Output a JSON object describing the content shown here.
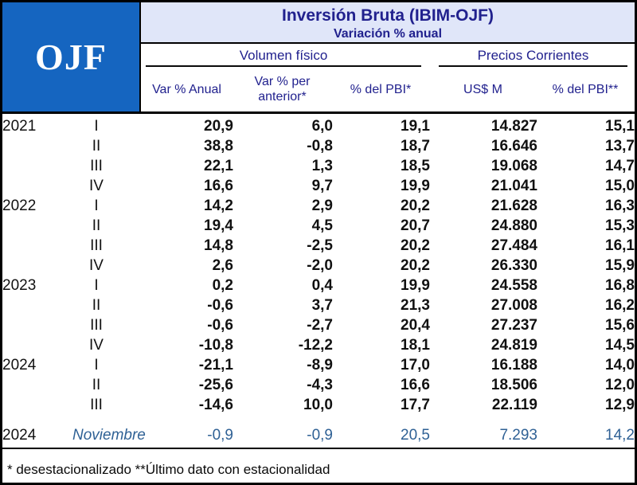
{
  "logo": {
    "text": "OJF"
  },
  "header": {
    "title": "Inversión Bruta (IBIM-OJF)",
    "subtitle": "Variación % anual",
    "group1": "Volumen físico",
    "group2": "Precios Corrientes",
    "columns": [
      "Var % Anual",
      "Var % per anterior*",
      "% del PBI*",
      "US$ M",
      "% del PBI**"
    ]
  },
  "chart_data": {
    "type": "table",
    "title": "Inversión Bruta (IBIM-OJF)",
    "subtitle": "Variación % anual",
    "column_groups": [
      {
        "label": "Volumen físico",
        "columns": [
          "Var % Anual",
          "Var % per anterior*",
          "% del PBI*"
        ]
      },
      {
        "label": "Precios Corrientes",
        "columns": [
          "US$ M",
          "% del PBI**"
        ]
      }
    ],
    "rows": [
      {
        "year": "2021",
        "period": "I",
        "values": [
          "20,9",
          "6,0",
          "19,1",
          "14.827",
          "15,1"
        ]
      },
      {
        "year": "",
        "period": "II",
        "values": [
          "38,8",
          "-0,8",
          "18,7",
          "16.646",
          "13,7"
        ]
      },
      {
        "year": "",
        "period": "III",
        "values": [
          "22,1",
          "1,3",
          "18,5",
          "19.068",
          "14,7"
        ]
      },
      {
        "year": "",
        "period": "IV",
        "values": [
          "16,6",
          "9,7",
          "19,9",
          "21.041",
          "15,0"
        ]
      },
      {
        "year": "2022",
        "period": "I",
        "values": [
          "14,2",
          "2,9",
          "20,2",
          "21.628",
          "16,3"
        ]
      },
      {
        "year": "",
        "period": "II",
        "values": [
          "19,4",
          "4,5",
          "20,7",
          "24.880",
          "15,3"
        ]
      },
      {
        "year": "",
        "period": "III",
        "values": [
          "14,8",
          "-2,5",
          "20,2",
          "27.484",
          "16,1"
        ]
      },
      {
        "year": "",
        "period": "IV",
        "values": [
          "2,6",
          "-2,0",
          "20,2",
          "26.330",
          "15,9"
        ]
      },
      {
        "year": "2023",
        "period": "I",
        "values": [
          "0,2",
          "0,4",
          "19,9",
          "24.558",
          "16,8"
        ]
      },
      {
        "year": "",
        "period": "II",
        "values": [
          "-0,6",
          "3,7",
          "21,3",
          "27.008",
          "16,2"
        ]
      },
      {
        "year": "",
        "period": "III",
        "values": [
          "-0,6",
          "-2,7",
          "20,4",
          "27.237",
          "15,6"
        ]
      },
      {
        "year": "",
        "period": "IV",
        "values": [
          "-10,8",
          "-12,2",
          "18,1",
          "24.819",
          "14,5"
        ]
      },
      {
        "year": "2024",
        "period": "I",
        "values": [
          "-21,1",
          "-8,9",
          "17,0",
          "16.188",
          "14,0"
        ]
      },
      {
        "year": "",
        "period": "II",
        "values": [
          "-25,6",
          "-4,3",
          "16,6",
          "18.506",
          "12,0"
        ]
      },
      {
        "year": "",
        "period": "III",
        "values": [
          "-14,6",
          "10,0",
          "17,7",
          "22.119",
          "12,9"
        ]
      }
    ],
    "highlight_row": {
      "year": "2024",
      "period": "Noviembre",
      "values": [
        "-0,9",
        "-0,9",
        "20,5",
        "7.293",
        "14,2"
      ]
    }
  },
  "footnote": "* desestacionalizado **Último dato con estacionalidad",
  "colors": {
    "logo_blue": "#1565c0",
    "title_background": "#e0e6f9",
    "header_navy": "#21218e",
    "highlight_blue": "#2f6195",
    "border_black": "#000000"
  }
}
